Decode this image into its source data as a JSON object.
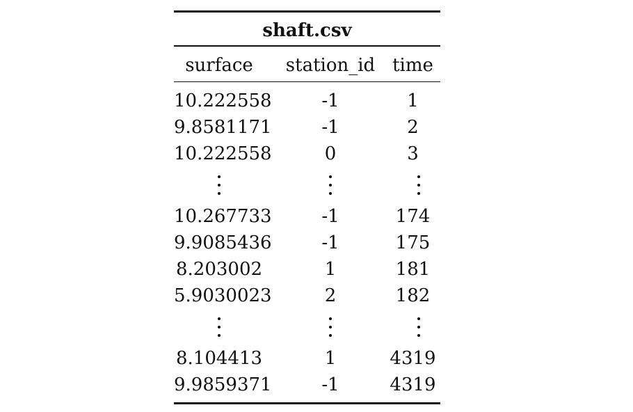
{
  "table": {
    "title": "shaft.csv",
    "columns": [
      "surface",
      "station_id",
      "time"
    ],
    "groups": [
      [
        [
          "10.222558",
          "-1",
          "1"
        ],
        [
          "9.8581171",
          "-1",
          "2"
        ],
        [
          "10.222558",
          "0",
          "3"
        ]
      ],
      [
        [
          "10.267733",
          "-1",
          "174"
        ],
        [
          "9.9085436",
          "-1",
          "175"
        ],
        [
          "8.203002",
          "1",
          "181"
        ],
        [
          "5.9030023",
          "2",
          "182"
        ]
      ],
      [
        [
          "8.104413",
          "1",
          "4319"
        ],
        [
          "9.9859371",
          "-1",
          "4319"
        ]
      ]
    ]
  }
}
